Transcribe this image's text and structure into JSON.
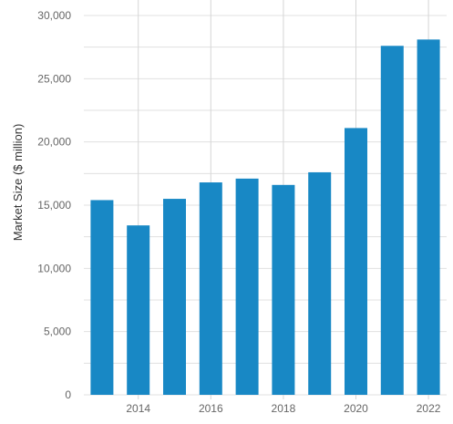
{
  "chart_data": {
    "type": "bar",
    "x": [
      2013,
      2014,
      2015,
      2016,
      2017,
      2018,
      2019,
      2020,
      2021,
      2022
    ],
    "values": [
      15400,
      13400,
      15500,
      16800,
      17100,
      16600,
      17600,
      21100,
      27600,
      28100
    ],
    "title": "",
    "xlabel": "",
    "ylabel": "Market Size ($ million)",
    "ylim": [
      0,
      30000
    ],
    "y_ticks": [
      0,
      5000,
      10000,
      15000,
      20000,
      25000,
      30000
    ],
    "y_tick_labels": [
      "0",
      "5,000",
      "10,000",
      "15,000",
      "20,000",
      "25,000",
      "30,000"
    ],
    "x_ticks": [
      2014,
      2016,
      2018,
      2020,
      2022
    ],
    "x_tick_labels": [
      "2014",
      "2016",
      "2018",
      "2020",
      "2022"
    ],
    "bar_color": "#1888C5",
    "gridline_color": "#E0E0E0",
    "grid": true,
    "legend": "none"
  }
}
